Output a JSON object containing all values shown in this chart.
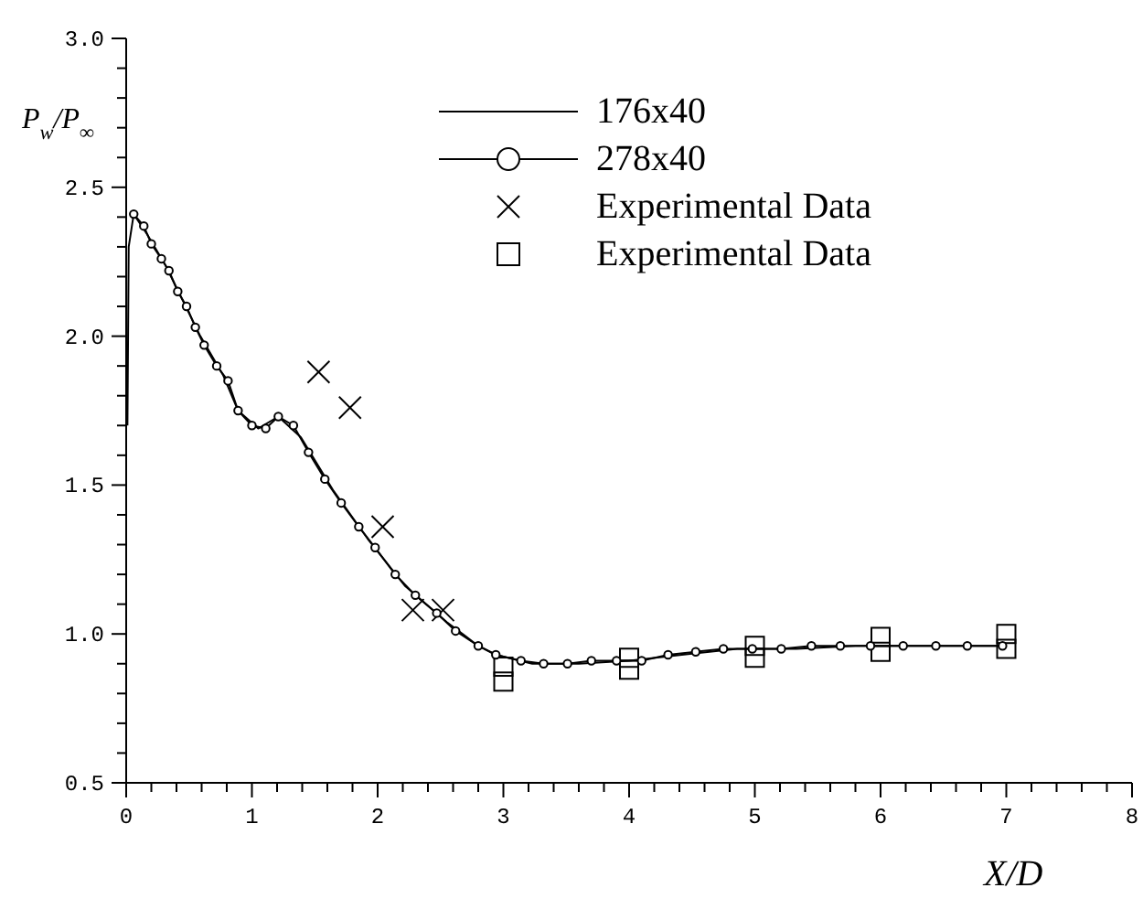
{
  "chart_data": {
    "type": "line",
    "xlabel": "X/D",
    "ylabel": "P$_{w}$/P$_{∞}$",
    "xlim": [
      0,
      8
    ],
    "ylim": [
      0.5,
      3.0
    ],
    "xticks": [
      0,
      {
        "value": 0.2,
        "label": null
      },
      {
        "value": 0.4,
        "label": null
      },
      {
        "value": 0.6,
        "label": null
      },
      {
        "value": 0.8,
        "label": null
      },
      1,
      {
        "value": 1.2,
        "label": null
      },
      {
        "value": 1.4,
        "label": null
      },
      {
        "value": 1.6,
        "label": null
      },
      {
        "value": 1.8,
        "label": null
      },
      2,
      {
        "value": 2.2,
        "label": null
      },
      {
        "value": 2.4,
        "label": null
      },
      {
        "value": 2.6,
        "label": null
      },
      {
        "value": 2.8,
        "label": null
      },
      3,
      {
        "value": 3.2,
        "label": null
      },
      {
        "value": 3.4,
        "label": null
      },
      {
        "value": 3.6,
        "label": null
      },
      {
        "value": 3.8,
        "label": null
      },
      4,
      {
        "value": 4.2,
        "label": null
      },
      {
        "value": 4.4,
        "label": null
      },
      {
        "value": 4.6,
        "label": null
      },
      {
        "value": 4.8,
        "label": null
      },
      5,
      {
        "value": 5.2,
        "label": null
      },
      {
        "value": 5.4,
        "label": null
      },
      {
        "value": 5.6,
        "label": null
      },
      {
        "value": 5.8,
        "label": null
      },
      6,
      {
        "value": 6.2,
        "label": null
      },
      {
        "value": 6.4,
        "label": null
      },
      {
        "value": 6.6,
        "label": null
      },
      {
        "value": 6.8,
        "label": null
      },
      7,
      {
        "value": 7.2,
        "label": null
      },
      {
        "value": 7.4,
        "label": null
      },
      {
        "value": 7.6,
        "label": null
      },
      {
        "value": 7.8,
        "label": null
      },
      8
    ],
    "yticks": [
      0.5,
      {
        "value": 0.6,
        "label": null
      },
      {
        "value": 0.7,
        "label": null
      },
      {
        "value": 0.8,
        "label": null
      },
      {
        "value": 0.9,
        "label": null
      },
      {
        "value": 1,
        "label": "1.0"
      },
      {
        "value": 1.1,
        "label": null
      },
      {
        "value": 1.2,
        "label": null
      },
      {
        "value": 1.3,
        "label": null
      },
      {
        "value": 1.4,
        "label": null
      },
      1.5,
      {
        "value": 1.6,
        "label": null
      },
      {
        "value": 1.7,
        "label": null
      },
      {
        "value": 1.8,
        "label": null
      },
      {
        "value": 1.9,
        "label": null
      },
      {
        "value": 2,
        "label": "2.0"
      },
      {
        "value": 2.1,
        "label": null
      },
      {
        "value": 2.2,
        "label": null
      },
      {
        "value": 2.3,
        "label": null
      },
      {
        "value": 2.4,
        "label": null
      },
      2.5,
      {
        "value": 2.6,
        "label": null
      },
      {
        "value": 2.7,
        "label": null
      },
      {
        "value": 2.8,
        "label": null
      },
      {
        "value": 2.9,
        "label": null
      },
      {
        "value": 3,
        "label": "3.0"
      }
    ],
    "legend": "top right",
    "grid": false,
    "series": [
      {
        "name": "176x40",
        "marker": "none",
        "line_style": "solid",
        "color": "#000000",
        "x": [
          0.01,
          0.02,
          0.06,
          0.17,
          0.31,
          0.45,
          0.59,
          0.77,
          0.89,
          1.05,
          1.21,
          1.39,
          1.65,
          1.92,
          2.22,
          2.55,
          2.8,
          2.94,
          3.23,
          3.6,
          4.0,
          4.42,
          4.86,
          5.33,
          5.8,
          6.31,
          6.97
        ],
        "values": [
          1.7,
          2.3,
          2.41,
          2.34,
          2.24,
          2.12,
          2.0,
          1.87,
          1.75,
          1.69,
          1.73,
          1.66,
          1.48,
          1.32,
          1.16,
          1.04,
          0.96,
          0.93,
          0.9,
          0.9,
          0.91,
          0.93,
          0.95,
          0.95,
          0.96,
          0.96,
          0.96
        ]
      },
      {
        "name": "278x40",
        "marker": "circle",
        "line_style": "solid",
        "color": "#000000",
        "x": [
          0.06,
          0.14,
          0.2,
          0.28,
          0.34,
          0.41,
          0.48,
          0.55,
          0.62,
          0.72,
          0.81,
          0.89,
          1.0,
          1.11,
          1.21,
          1.33,
          1.45,
          1.58,
          1.71,
          1.85,
          1.98,
          2.14,
          2.3,
          2.47,
          2.62,
          2.8,
          2.94,
          3.14,
          3.32,
          3.51,
          3.7,
          3.9,
          4.1,
          4.31,
          4.53,
          4.75,
          4.98,
          5.21,
          5.45,
          5.68,
          5.92,
          6.18,
          6.44,
          6.69,
          6.97
        ],
        "values": [
          2.41,
          2.37,
          2.31,
          2.26,
          2.22,
          2.15,
          2.1,
          2.03,
          1.97,
          1.9,
          1.85,
          1.75,
          1.7,
          1.69,
          1.73,
          1.7,
          1.61,
          1.52,
          1.44,
          1.36,
          1.29,
          1.2,
          1.13,
          1.07,
          1.01,
          0.96,
          0.93,
          0.91,
          0.9,
          0.9,
          0.91,
          0.91,
          0.91,
          0.93,
          0.94,
          0.95,
          0.95,
          0.95,
          0.96,
          0.96,
          0.96,
          0.96,
          0.96,
          0.96,
          0.96
        ]
      },
      {
        "name": "Experimental Data",
        "type": "scatter",
        "marker": "cross",
        "color": "#000000",
        "x": [
          1.53,
          1.78,
          2.04,
          2.28,
          2.52
        ],
        "values": [
          1.88,
          1.76,
          1.36,
          1.08,
          1.08
        ]
      },
      {
        "name": "Experimental Data",
        "type": "scatter",
        "marker": "square",
        "color": "#000000",
        "x": [
          3,
          3,
          4,
          4,
          5,
          5,
          6,
          6,
          7,
          7
        ],
        "values": [
          0.89,
          0.84,
          0.92,
          0.88,
          0.96,
          0.92,
          0.99,
          0.94,
          1.0,
          0.95
        ]
      }
    ]
  }
}
